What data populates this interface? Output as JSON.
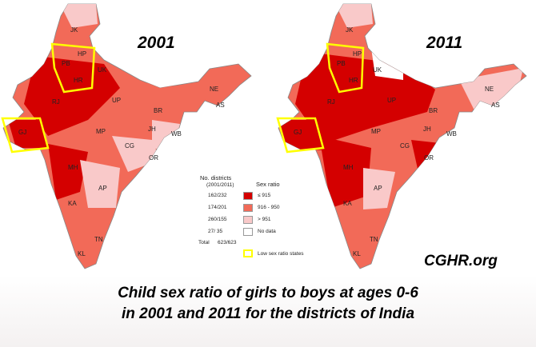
{
  "maps": [
    {
      "year": "2001",
      "states": [
        "JK",
        "HP",
        "PB",
        "UK",
        "HR",
        "RJ",
        "UP",
        "NE",
        "AS",
        "BR",
        "GJ",
        "MP",
        "JH",
        "WB",
        "CG",
        "OR",
        "MH",
        "AP",
        "KA",
        "TN",
        "KL"
      ]
    },
    {
      "year": "2011",
      "states": [
        "JK",
        "HP",
        "PB",
        "UK",
        "HR",
        "RJ",
        "UP",
        "NE",
        "AS",
        "BR",
        "GJ",
        "MP",
        "JH",
        "WB",
        "CG",
        "OR",
        "MH",
        "AP",
        "KA",
        "TN",
        "KL"
      ]
    }
  ],
  "legend": {
    "districts_header": "No. districts",
    "districts_subheader": "(2001/2011)",
    "ratio_header": "Sex ratio",
    "rows": [
      {
        "count": "162/232",
        "label": "≤ 915",
        "color": "#d40000"
      },
      {
        "count": "174/201",
        "label": "916 - 950",
        "color": "#f26a58"
      },
      {
        "count": "260/155",
        "label": "> 951",
        "color": "#f9c9c9"
      },
      {
        "count": "27/ 35",
        "label": "No data",
        "color": "#ffffff"
      }
    ],
    "total_label": "Total",
    "total_value": "623/623",
    "low_states_label": "Low sex ratio states",
    "low_states_color": "#ffff00"
  },
  "credit": "CGHR.org",
  "caption": {
    "line1": "Child sex ratio of girls to boys at ages 0-6",
    "line2": "in 2001 and 2011 for the districts of India"
  }
}
